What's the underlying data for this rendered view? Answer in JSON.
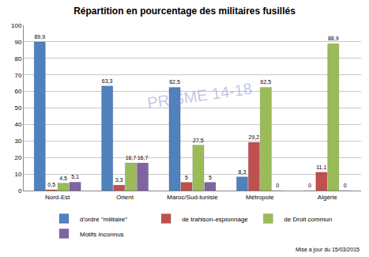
{
  "chart_data": {
    "type": "bar",
    "title": "Répartition en pourcentage des militaires fusillés",
    "categories": [
      "Nord-Est",
      "Orient",
      "Maroc/Sud-tunisie",
      "Métropole",
      "Algérie"
    ],
    "series": [
      {
        "name": "d'ordre \"militaire\"",
        "color": "#4f81bd",
        "values": [
          89.9,
          63.3,
          62.5,
          8.3,
          0
        ],
        "value_labels": [
          "89,9",
          "63,3",
          "62,5",
          "8,3",
          "0"
        ]
      },
      {
        "name": "de trahison-espionnage",
        "color": "#c0504d",
        "values": [
          0.5,
          3.3,
          5,
          29.2,
          11.1
        ],
        "value_labels": [
          "0,5",
          "3,3",
          "5",
          "29,2",
          "11,1"
        ]
      },
      {
        "name": "de Droit commun",
        "color": "#9bbb59",
        "values": [
          4.5,
          16.7,
          27.5,
          62.5,
          88.9
        ],
        "value_labels": [
          "4,5",
          "16,7",
          "27,5",
          "62,5",
          "88,9"
        ]
      },
      {
        "name": "Motifs inconnus",
        "color": "#8064a2",
        "values": [
          5.1,
          16.7,
          5,
          0,
          0
        ],
        "value_labels": [
          "5,1",
          "16,7",
          "5",
          "0",
          "0"
        ]
      }
    ],
    "ylim": [
      0,
      100
    ],
    "yticks": [
      0,
      10,
      20,
      30,
      40,
      50,
      60,
      70,
      80,
      90,
      100
    ],
    "grid": true,
    "legend": "bottom",
    "data_labels": true,
    "annotations": [
      "PRISME 14-18",
      "Mise à jour du 15/03/2015"
    ]
  }
}
